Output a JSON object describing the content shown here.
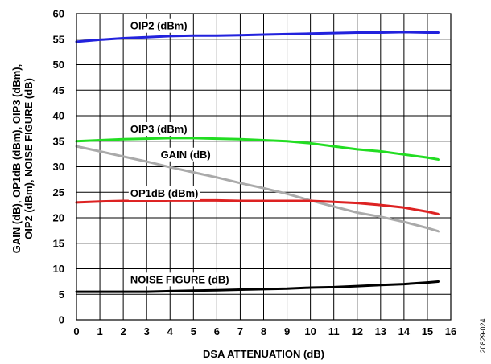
{
  "chart_data": {
    "type": "line",
    "xlabel": "DSA ATTENUATION (dB)",
    "ylabel_lines": [
      "GAIN (dB), OP1dB (dBm), OIP3 (dBm),",
      "OIP2 (dBm), NOISE FIGURE (dB)"
    ],
    "xlim": [
      0,
      16
    ],
    "ylim": [
      0,
      60
    ],
    "xticks": [
      0,
      1,
      2,
      3,
      4,
      5,
      6,
      7,
      8,
      9,
      10,
      11,
      12,
      13,
      14,
      15,
      16
    ],
    "yticks": [
      0,
      5,
      10,
      15,
      20,
      25,
      30,
      35,
      40,
      45,
      50,
      55,
      60
    ],
    "grid": true,
    "series": [
      {
        "name": "OIP2 (dBm)",
        "color": "#2222dd",
        "x": [
          0,
          1,
          2,
          3,
          4,
          5,
          6,
          7,
          8,
          9,
          10,
          11,
          12,
          13,
          14,
          15,
          15.5
        ],
        "values": [
          54.5,
          54.9,
          55.2,
          55.4,
          55.6,
          55.7,
          55.7,
          55.8,
          55.9,
          56.0,
          56.1,
          56.2,
          56.3,
          56.3,
          56.4,
          56.3,
          56.3
        ]
      },
      {
        "name": "OIP3 (dBm)",
        "color": "#22dd22",
        "x": [
          0,
          1,
          2,
          3,
          4,
          5,
          6,
          7,
          8,
          9,
          10,
          11,
          12,
          13,
          14,
          15,
          15.5
        ],
        "values": [
          35.0,
          35.2,
          35.4,
          35.5,
          35.6,
          35.6,
          35.5,
          35.4,
          35.2,
          35.0,
          34.6,
          34.0,
          33.4,
          33.0,
          32.4,
          31.8,
          31.4
        ]
      },
      {
        "name": "GAIN (dB)",
        "color": "#aaaaaa",
        "x": [
          0,
          1,
          2,
          3,
          4,
          5,
          6,
          7,
          8,
          9,
          10,
          11,
          12,
          13,
          14,
          15,
          15.5
        ],
        "values": [
          34.0,
          33.0,
          32.0,
          31.0,
          29.9,
          28.9,
          27.9,
          26.8,
          25.8,
          24.7,
          23.4,
          22.2,
          21.0,
          20.2,
          19.2,
          18.0,
          17.3
        ]
      },
      {
        "name": "OP1dB (dBm)",
        "color": "#dd2222",
        "x": [
          0,
          1,
          2,
          3,
          4,
          5,
          6,
          7,
          8,
          9,
          10,
          11,
          12,
          13,
          14,
          15,
          15.5
        ],
        "values": [
          23.0,
          23.2,
          23.3,
          23.3,
          23.4,
          23.4,
          23.4,
          23.3,
          23.3,
          23.3,
          23.3,
          23.1,
          22.9,
          22.5,
          22.0,
          21.2,
          20.7
        ]
      },
      {
        "name": "NOISE FIGURE (dB)",
        "color": "#000000",
        "x": [
          0,
          1,
          2,
          3,
          4,
          5,
          6,
          7,
          8,
          9,
          10,
          11,
          12,
          13,
          14,
          15,
          15.5
        ],
        "values": [
          5.5,
          5.5,
          5.5,
          5.5,
          5.6,
          5.7,
          5.8,
          5.9,
          6.0,
          6.1,
          6.3,
          6.4,
          6.6,
          6.8,
          7.0,
          7.3,
          7.5
        ]
      }
    ],
    "annotations": [
      {
        "text": "OIP2 (dBm)",
        "x": 2.3,
        "y": 57.6
      },
      {
        "text": "OIP3 (dBm)",
        "x": 2.3,
        "y": 37.4
      },
      {
        "text": "GAIN (dB)",
        "x": 3.6,
        "y": 32.4
      },
      {
        "text": "OP1dB (dBm)",
        "x": 2.3,
        "y": 24.8
      },
      {
        "text": "NOISE FIGURE (dB)",
        "x": 2.3,
        "y": 7.9
      }
    ]
  },
  "figure_id": "20829-024"
}
